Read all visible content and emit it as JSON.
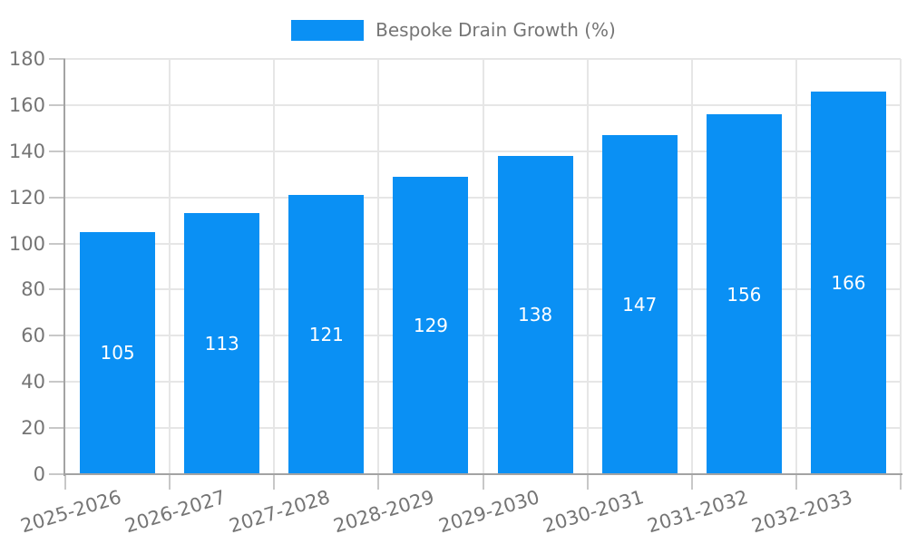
{
  "legend": {
    "label": "Bespoke Drain Growth (%)"
  },
  "chart_data": {
    "type": "bar",
    "title": "",
    "categories": [
      "2025-2026",
      "2026-2027",
      "2027-2028",
      "2028-2029",
      "2029-2030",
      "2030-2031",
      "2031-2032",
      "2032-2033"
    ],
    "values": [
      105,
      113,
      121,
      129,
      138,
      147,
      156,
      166
    ],
    "series_name": "Bespoke Drain Growth (%)",
    "xlabel": "",
    "ylabel": "",
    "ylim": [
      0,
      180
    ],
    "yticks": [
      0,
      20,
      40,
      60,
      80,
      100,
      120,
      140,
      160,
      180
    ],
    "grid": true,
    "legend_position": "top-center",
    "bar_labels_visible": true,
    "x_label_rotation_deg": -17,
    "colors": {
      "bar": "#0a90f4",
      "bar_label": "#ffffff",
      "axis": "#a3a3a3",
      "tick_mark": "#c8c8c8",
      "gridline": "#e6e6e6",
      "text": "#757575",
      "background": "#ffffff"
    }
  }
}
